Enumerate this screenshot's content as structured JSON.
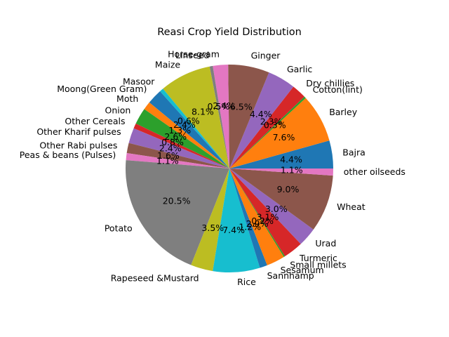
{
  "chart_data": {
    "type": "pie",
    "title": "Reasi Crop Yield Distribution",
    "start_angle_deg": 0,
    "direction": "counterclockwise",
    "slices": [
      {
        "label": "Bajra",
        "value": 4.4,
        "pct_text": "4.4%",
        "color": "#1f77b4"
      },
      {
        "label": "Barley",
        "value": 7.6,
        "pct_text": "7.6%",
        "color": "#ff7f0e"
      },
      {
        "label": "Cotton(lint)",
        "value": 0.3,
        "pct_text": "0.3%",
        "color": "#2ca02c"
      },
      {
        "label": "Dry chillies",
        "value": 2.3,
        "pct_text": "2.3%",
        "color": "#d62728"
      },
      {
        "label": "Garlic",
        "value": 4.4,
        "pct_text": "4.4%",
        "color": "#9467bd"
      },
      {
        "label": "Ginger",
        "value": 6.5,
        "pct_text": "6.5%",
        "color": "#8c564b"
      },
      {
        "label": "Horse-gram",
        "value": 2.4,
        "pct_text": "2.4%",
        "color": "#e377c2"
      },
      {
        "label": "Linseed",
        "value": 0.5,
        "pct_text": "0.5%",
        "color": "#7f7f7f"
      },
      {
        "label": "Maize",
        "value": 8.1,
        "pct_text": "8.1%",
        "color": "#bcbd22"
      },
      {
        "label": "Masoor",
        "value": 0.6,
        "pct_text": "0.6%",
        "color": "#17becf"
      },
      {
        "label": "Moong(Green Gram)",
        "value": 2.4,
        "pct_text": "2.4%",
        "color": "#1f77b4"
      },
      {
        "label": "Moth",
        "value": 1.3,
        "pct_text": "1.3%",
        "color": "#ff7f0e"
      },
      {
        "label": "Onion",
        "value": 2.6,
        "pct_text": "2.6%",
        "color": "#2ca02c"
      },
      {
        "label": "Other Cereals",
        "value": 0.8,
        "pct_text": "0.8%",
        "color": "#d62728"
      },
      {
        "label": "Other Kharif pulses",
        "value": 2.4,
        "pct_text": "2.4%",
        "color": "#9467bd"
      },
      {
        "label": "Other Rabi pulses",
        "value": 1.6,
        "pct_text": "1.6%",
        "color": "#8c564b"
      },
      {
        "label": "Peas & beans (Pulses)",
        "value": 1.1,
        "pct_text": "1.1%",
        "color": "#e377c2"
      },
      {
        "label": "Potato",
        "value": 20.5,
        "pct_text": "20.5%",
        "color": "#7f7f7f"
      },
      {
        "label": "Rapeseed &Mustard",
        "value": 3.5,
        "pct_text": "3.5%",
        "color": "#bcbd22"
      },
      {
        "label": "Rice",
        "value": 7.4,
        "pct_text": "7.4%",
        "color": "#17becf"
      },
      {
        "label": "Sannhamp",
        "value": 1.2,
        "pct_text": "1.2%",
        "color": "#1f77b4"
      },
      {
        "label": "Sesamum",
        "value": 2.9,
        "pct_text": "2.9%",
        "color": "#ff7f0e"
      },
      {
        "label": "Small millets",
        "value": 0.2,
        "pct_text": "0.2%",
        "color": "#2ca02c"
      },
      {
        "label": "Turmeric",
        "value": 3.1,
        "pct_text": "3.1%",
        "color": "#d62728"
      },
      {
        "label": "Urad",
        "value": 3.0,
        "pct_text": "3.0%",
        "color": "#9467bd"
      },
      {
        "label": "Wheat",
        "value": 9.0,
        "pct_text": "9.0%",
        "color": "#8c564b"
      },
      {
        "label": "other oilseeds",
        "value": 1.1,
        "pct_text": "1.1%",
        "color": "#e377c2"
      }
    ]
  }
}
